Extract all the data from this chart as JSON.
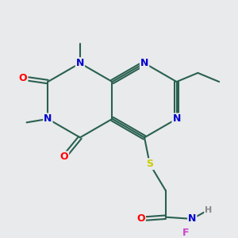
{
  "bg_color": "#e8eaeb",
  "bond_color": "#2a6050",
  "bond_width": 1.5,
  "atom_colors": {
    "N": "#0000cc",
    "O": "#ff0000",
    "S": "#cccc00",
    "F": "#cc44cc",
    "C": "#2a6050",
    "H": "#888888"
  },
  "font_size": 9,
  "title": ""
}
